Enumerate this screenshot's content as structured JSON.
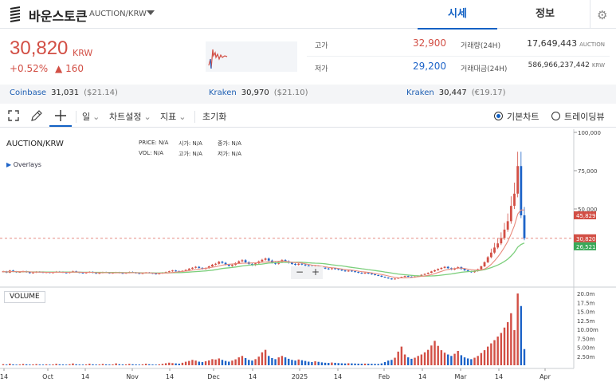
{
  "header": {
    "coin_name": "바운스토큰",
    "pair": "AUCTION/KRW",
    "tabs": [
      "시세",
      "정보"
    ]
  },
  "quote": {
    "price": "30,820",
    "unit": "KRW",
    "change_pct": "+0.52%",
    "change_arrow": "▲",
    "change_abs": "160",
    "high_label": "고가",
    "high": "32,900",
    "low_label": "저가",
    "low": "29,200",
    "volume_label": "거래량(24H)",
    "volume": "17,649,443",
    "volume_unit": "AUCTION",
    "value_label": "거래대금(24H)",
    "value": "586,966,237,442",
    "value_unit": "KRW"
  },
  "exchanges": [
    {
      "name": "Coinbase",
      "price": "31,031",
      "usd": "($21.14)"
    },
    {
      "name": "Kraken",
      "price": "30,970",
      "usd": "($21.10)"
    },
    {
      "name": "Kraken",
      "price": "30,447",
      "usd": "(€19.17)"
    }
  ],
  "toolbar": {
    "period": "일",
    "chart_settings": "차트설정",
    "indicators": "지표",
    "reset": "초기화",
    "basic_chart": "기본차트",
    "tradingview": "트레이딩뷰"
  },
  "chart": {
    "symbol": "AUCTION/KRW",
    "overlays": "Overlays",
    "ohlc_row1": [
      [
        "PRICE:",
        "N/A"
      ],
      [
        "시가:",
        "N/A"
      ],
      [
        "종가:",
        "N/A"
      ]
    ],
    "ohlc_row2": [
      [
        "VOL:",
        "N/A"
      ],
      [
        "고가:",
        "N/A"
      ],
      [
        "저가:",
        "N/A"
      ]
    ],
    "volume_label": "VOLUME",
    "zoom_minus": "−",
    "zoom_plus": "+"
  },
  "chart_data": {
    "type": "candlestick",
    "price_axis": {
      "ticks": [
        "100,000",
        "75,000",
        "50,000"
      ],
      "range": [
        0,
        100000
      ]
    },
    "price_markers": [
      {
        "label": "45,829",
        "color": "#d24f45"
      },
      {
        "label": "30,820",
        "color": "#d24f45"
      },
      {
        "label": "26,521",
        "color": "#3aa858"
      }
    ],
    "volume_axis": {
      "ticks": [
        "20.0m",
        "17.5m",
        "15.0m",
        "12.5m",
        "10.00m",
        "7.50m",
        "5.00m",
        "2.50m"
      ],
      "range": [
        0,
        20000000
      ]
    },
    "x_ticks": [
      "14",
      "Oct",
      "14",
      "Nov",
      "14",
      "Dec",
      "14",
      "2025",
      "14",
      "Feb",
      "14",
      "Mar",
      "14",
      "Apr"
    ],
    "colors": {
      "up": "#d24f45",
      "down": "#1e64c8",
      "ma_fast": "#e88a7c",
      "ma_slow": "#7ccf7c"
    },
    "closes": [
      9200,
      8400,
      9800,
      9100,
      8600,
      8900,
      9300,
      8700,
      8100,
      8500,
      9000,
      8800,
      8400,
      8700,
      8300,
      8600,
      9100,
      8900,
      8500,
      8200,
      8800,
      9300,
      8700,
      8400,
      8100,
      8500,
      8900,
      8300,
      7800,
      8200,
      8700,
      8400,
      8000,
      8300,
      8600,
      8200,
      7900,
      8300,
      8800,
      8500,
      8100,
      7700,
      8100,
      8500,
      8200,
      7800,
      7500,
      7900,
      8400,
      8800,
      9300,
      9800,
      9400,
      9000,
      9600,
      10200,
      11000,
      11600,
      12200,
      11500,
      10800,
      11400,
      12500,
      13600,
      14200,
      15500,
      14800,
      13600,
      12800,
      13500,
      14600,
      15800,
      16500,
      15200,
      14100,
      13300,
      14500,
      15700,
      16800,
      17600,
      16300,
      15000,
      14200,
      15400,
      16600,
      15800,
      14900,
      14100,
      13500,
      14200,
      13700,
      13100,
      12600,
      12100,
      12600,
      12100,
      11600,
      11100,
      10700,
      11200,
      10800,
      10300,
      9800,
      9300,
      9700,
      9300,
      8800,
      8300,
      7900,
      8300,
      7800,
      7300,
      6800,
      6400,
      5700,
      5200,
      4600,
      4000,
      4500,
      5000,
      5600,
      6200,
      5800,
      5300,
      5800,
      6400,
      7000,
      7600,
      8300,
      9200,
      10000,
      10800,
      11500,
      12200,
      11300,
      10400,
      11200,
      12000,
      10800,
      9900,
      9200,
      8700,
      9400,
      10600,
      12500,
      15200,
      18500,
      21500,
      24800,
      27500,
      31000,
      36500,
      42000,
      52000,
      60000,
      78000,
      45829,
      30820
    ],
    "volumes": [
      300,
      200,
      450,
      250,
      180,
      220,
      350,
      260,
      200,
      240,
      320,
      210,
      190,
      260,
      180,
      230,
      400,
      260,
      220,
      180,
      280,
      500,
      270,
      210,
      190,
      240,
      420,
      260,
      200,
      230,
      360,
      250,
      210,
      240,
      520,
      290,
      230,
      250,
      380,
      270,
      220,
      190,
      260,
      420,
      280,
      210,
      180,
      260,
      380,
      560,
      720,
      600,
      520,
      440,
      700,
      980,
      1200,
      1500,
      1300,
      1000,
      880,
      1100,
      1350,
      1700,
      1600,
      1900,
      1500,
      1200,
      1000,
      1300,
      1650,
      2200,
      2600,
      2000,
      1500,
      1300,
      1700,
      2400,
      3600,
      4300,
      2600,
      2000,
      1700,
      2200,
      2600,
      2200,
      1800,
      1500,
      1300,
      1600,
      1400,
      1200,
      1000,
      900,
      1100,
      950,
      800,
      700,
      650,
      760,
      680,
      600,
      540,
      500,
      560,
      520,
      480,
      440,
      420,
      460,
      420,
      400,
      380,
      360,
      520,
      900,
      1300,
      1500,
      2100,
      3800,
      5200,
      3000,
      2200,
      1800,
      2100,
      2600,
      3000,
      3600,
      4300,
      5500,
      6800,
      5400,
      4200,
      3500,
      3000,
      2600,
      3200,
      4000,
      2800,
      2200,
      1900,
      1700,
      2100,
      2600,
      3400,
      4200,
      5200,
      6100,
      7000,
      8000,
      9000,
      10500,
      12000,
      14500,
      9800,
      20000,
      16500,
      4500
    ]
  }
}
